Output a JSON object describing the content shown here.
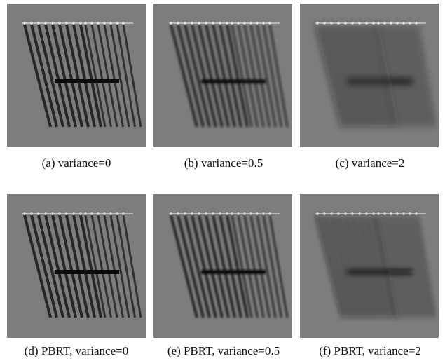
{
  "panels": [
    {
      "caption": "(a) variance=0"
    },
    {
      "caption": "(b) variance=0.5"
    },
    {
      "caption": "(c) variance=2"
    },
    {
      "caption": "(d) PBRT, variance=0"
    },
    {
      "caption": "(e) PBRT, variance=0.5"
    },
    {
      "caption": "(f) PBRT, variance=2"
    }
  ]
}
